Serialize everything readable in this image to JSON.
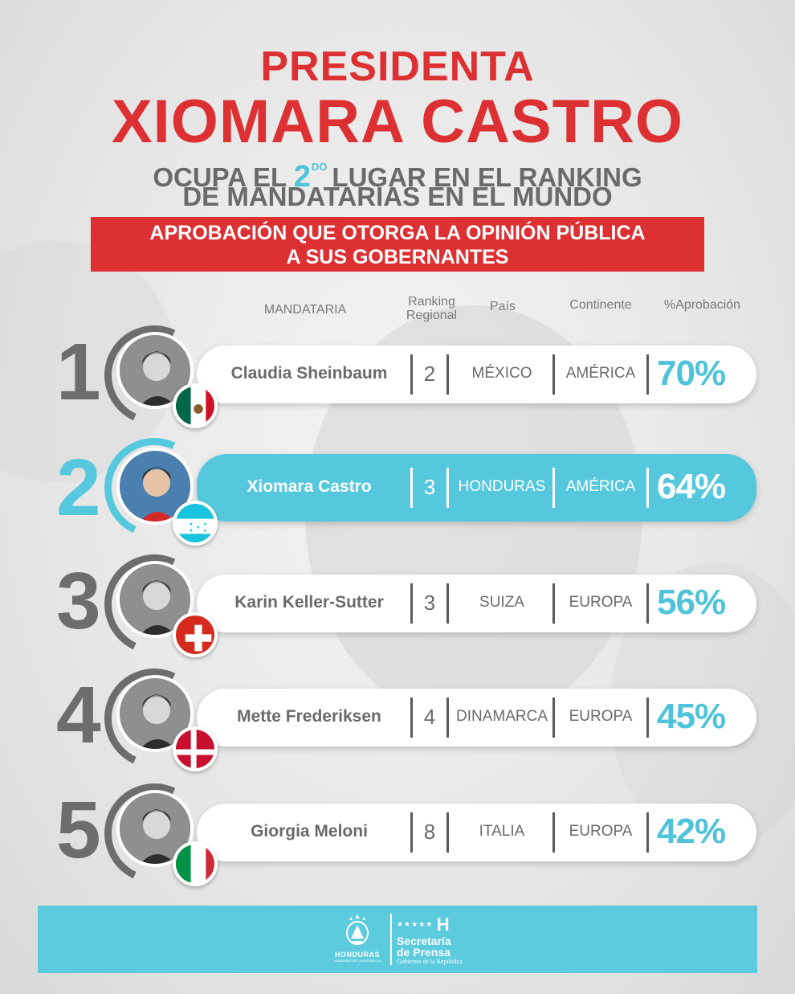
{
  "title": {
    "line1": "PRESIDENTA",
    "line2": "XIOMARA CASTRO",
    "sub1_pre": "OCUPA EL",
    "sub1_num": "2",
    "sub1_sup": "DO",
    "sub1_post": "LUGAR EN EL RANKING",
    "sub2": "DE MANDATARIAS EN EL MUNDO"
  },
  "banner": {
    "line1": "APROBACIÓN QUE OTORGA LA OPINIÓN PÚBLICA",
    "line2": "A SUS GOBERNANTES"
  },
  "headers": {
    "mandataria": "MANDATARIA",
    "ranking_line1": "Ranking",
    "ranking_line2": "Regional",
    "pais": "País",
    "continente": "Continente",
    "aprobacion": "%Aprobación"
  },
  "rows": [
    {
      "rank": "1",
      "name": "Claudia Sheinbaum",
      "regional": "2",
      "pais": "MÉXICO",
      "continente": "AMÉRICA",
      "aprobacion": "70%",
      "flag": "mexico-flag",
      "approval_value": 70
    },
    {
      "rank": "2",
      "name": "Xiomara Castro",
      "regional": "3",
      "pais": "HONDURAS",
      "continente": "AMÉRICA",
      "aprobacion": "64%",
      "flag": "honduras-flag",
      "approval_value": 64
    },
    {
      "rank": "3",
      "name": "Karin Keller-Sutter",
      "regional": "3",
      "pais": "SUIZA",
      "continente": "EUROPA",
      "aprobacion": "56%",
      "flag": "switzerland-flag",
      "approval_value": 56
    },
    {
      "rank": "4",
      "name": "Mette Frederiksen",
      "regional": "4",
      "pais": "DINAMARCA",
      "continente": "EUROPA",
      "aprobacion": "45%",
      "flag": "denmark-flag",
      "approval_value": 45
    },
    {
      "rank": "5",
      "name": "Giorgia Meloni",
      "regional": "8",
      "pais": "ITALIA",
      "continente": "EUROPA",
      "aprobacion": "42%",
      "flag": "italy-flag",
      "approval_value": 42
    }
  ],
  "footer": {
    "logo1_label": "HONDURAS",
    "logo1_sub": "GOBIERNO DE LA REPÚBLICA",
    "logo2_letter": "H",
    "logo2_line1": "Secretaría",
    "logo2_line2": "de Prensa",
    "logo2_line3": "Gobierno de la República"
  },
  "colors": {
    "red": "#dc3033",
    "cyan": "#56c8dd",
    "gray_text": "#6a6a6a"
  }
}
